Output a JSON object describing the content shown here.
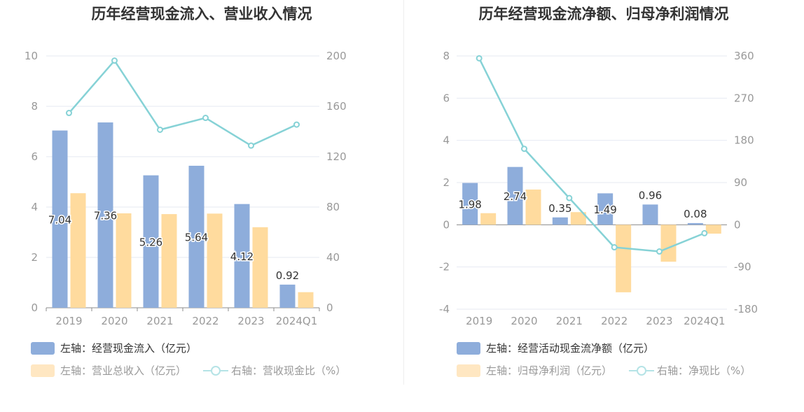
{
  "chart_data": [
    {
      "type": "bar",
      "title": "历年经营现金流入、营业收入情况",
      "categories": [
        "2019",
        "2020",
        "2021",
        "2022",
        "2023",
        "2024Q1"
      ],
      "left_axis": {
        "ylim": [
          0,
          10
        ],
        "ticks": [
          "0",
          "2",
          "4",
          "6",
          "8",
          "10"
        ]
      },
      "right_axis": {
        "ylim": [
          0,
          200
        ],
        "ticks": [
          "0",
          "40",
          "80",
          "120",
          "160",
          "200"
        ]
      },
      "series": [
        {
          "name": "左轴：经营现金流入（亿元）",
          "kind": "bar",
          "axis": "left",
          "color": "#8eaddb",
          "values": [
            7.04,
            7.36,
            5.26,
            5.64,
            4.12,
            0.92
          ],
          "labels": [
            "7.04",
            "7.36",
            "5.26",
            "5.64",
            "4.12",
            "0.92"
          ]
        },
        {
          "name": "左轴：营业总收入（亿元）",
          "kind": "bar",
          "axis": "left",
          "color": "#ffdb9e",
          "values": [
            4.55,
            3.75,
            3.72,
            3.74,
            3.2,
            0.62
          ]
        },
        {
          "name": "右轴：营收现金比（%）",
          "kind": "line",
          "axis": "right",
          "color": "#86d2d6",
          "values": [
            154.7,
            196.3,
            141.4,
            150.8,
            128.8,
            145.5
          ]
        }
      ],
      "grid": true,
      "legend_position": "bottom-left"
    },
    {
      "type": "bar",
      "title": "历年经营现金流净额、归母净利润情况",
      "categories": [
        "2019",
        "2020",
        "2021",
        "2022",
        "2023",
        "2024Q1"
      ],
      "left_axis": {
        "ylim": [
          -4,
          8
        ],
        "ticks": [
          "-4",
          "-2",
          "0",
          "2",
          "4",
          "6",
          "8"
        ]
      },
      "right_axis": {
        "ylim": [
          -180,
          360
        ],
        "ticks": [
          "-180",
          "-90",
          "0",
          "90",
          "180",
          "270",
          "360"
        ]
      },
      "series": [
        {
          "name": "左轴：经营活动现金流净额（亿元）",
          "kind": "bar",
          "axis": "left",
          "color": "#8eaddb",
          "values": [
            1.98,
            2.74,
            0.35,
            1.49,
            0.96,
            0.08
          ],
          "labels": [
            "1.98",
            "2.74",
            "0.35",
            "1.49",
            "0.96",
            "0.08"
          ]
        },
        {
          "name": "左轴：归母净利润（亿元）",
          "kind": "bar",
          "axis": "left",
          "color": "#ffdb9e",
          "values": [
            0.55,
            1.67,
            0.6,
            -3.2,
            -1.75,
            -0.42
          ]
        },
        {
          "name": "右轴：净现比（%）",
          "kind": "line",
          "axis": "right",
          "color": "#86d2d6",
          "values": [
            355,
            162,
            57,
            -48,
            -57,
            -18
          ]
        }
      ],
      "grid": true,
      "legend_position": "bottom-left"
    }
  ]
}
